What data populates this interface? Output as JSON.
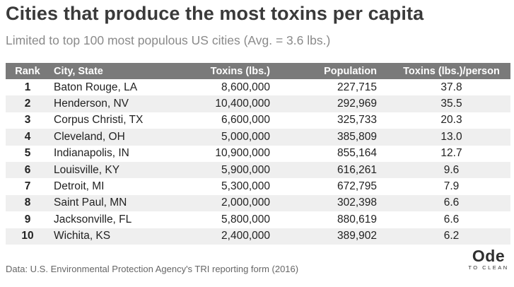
{
  "title": "Cities that produce the most toxins per capita",
  "subtitle": "Limited to top 100 most populous US cities (Avg. = 3.6 lbs.)",
  "source": "Data: U.S. Environmental Protection Agency's TRI reporting form (2016)",
  "logo": {
    "main": "Ode",
    "sub": "TO CLEAN"
  },
  "colors": {
    "header_bg": "#7a7a7a",
    "row_alt_bg": "#efefef",
    "title": "#3a3a3a"
  },
  "chart_data": {
    "type": "table",
    "columns": [
      "Rank",
      "City, State",
      "Toxins (lbs.)",
      "Population",
      "Toxins (lbs.)/person"
    ],
    "rows": [
      [
        "1",
        "Baton Rouge, LA",
        "8,600,000",
        "227,715",
        "37.8"
      ],
      [
        "2",
        "Henderson, NV",
        "10,400,000",
        "292,969",
        "35.5"
      ],
      [
        "3",
        "Corpus Christi, TX",
        "6,600,000",
        "325,733",
        "20.3"
      ],
      [
        "4",
        "Cleveland, OH",
        "5,000,000",
        "385,809",
        "13.0"
      ],
      [
        "5",
        "Indianapolis, IN",
        "10,900,000",
        "855,164",
        "12.7"
      ],
      [
        "6",
        "Louisville, KY",
        "5,900,000",
        "616,261",
        "9.6"
      ],
      [
        "7",
        "Detroit, MI",
        "5,300,000",
        "672,795",
        "7.9"
      ],
      [
        "8",
        "Saint Paul, MN",
        "2,000,000",
        "302,398",
        "6.6"
      ],
      [
        "9",
        "Jacksonville, FL",
        "5,800,000",
        "880,619",
        "6.6"
      ],
      [
        "10",
        "Wichita, KS",
        "2,400,000",
        "389,902",
        "6.2"
      ]
    ]
  }
}
